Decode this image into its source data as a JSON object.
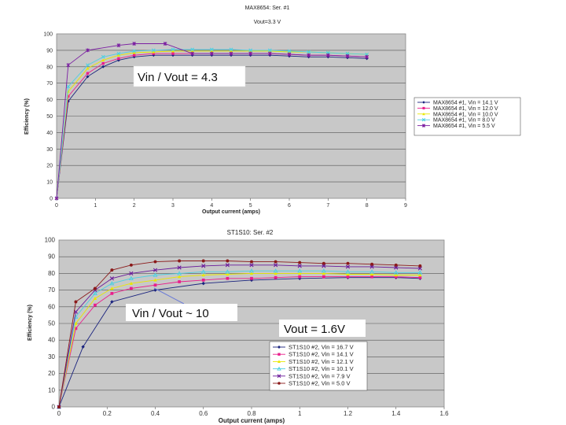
{
  "chart_data": [
    {
      "type": "line",
      "title": "MAX8654: Ser. #1",
      "subtitle": "Vout=3.3 V",
      "xlabel": "Output current (amps)",
      "ylabel": "Efficiency (%)",
      "xlim": [
        0,
        9
      ],
      "ylim": [
        0,
        100
      ],
      "xticks": [
        0,
        1,
        2,
        3,
        4,
        5,
        6,
        7,
        8,
        9
      ],
      "yticks": [
        0,
        10,
        20,
        30,
        40,
        50,
        60,
        70,
        80,
        90,
        100
      ],
      "grid": true,
      "legend_position": "right",
      "annotation": "Vin / Vout = 4.3",
      "series": [
        {
          "name": "MAX8654 #1, Vin = 14.1 V",
          "color": "#1a237e",
          "marker": "diamond",
          "x": [
            0,
            0.3,
            0.8,
            1.2,
            1.6,
            2.0,
            2.5,
            3.0,
            3.5,
            4.0,
            4.5,
            5.0,
            5.5,
            6.0,
            6.5,
            7.0,
            7.5,
            8.0
          ],
          "y": [
            0,
            59,
            74,
            80,
            84,
            86,
            87,
            87,
            87,
            87,
            87,
            87,
            87,
            86.5,
            86,
            86,
            85.5,
            85
          ]
        },
        {
          "name": "MAX8654 #1, Vin = 12.0 V",
          "color": "#e91e8c",
          "marker": "square",
          "x": [
            0,
            0.3,
            0.8,
            1.2,
            1.6,
            2.0,
            2.5,
            3.0,
            3.5,
            4.0,
            4.5,
            5.0,
            5.5,
            6.0,
            6.5,
            7.0,
            7.5,
            8.0
          ],
          "y": [
            0,
            62,
            76,
            82,
            85,
            87,
            88,
            88,
            88,
            88,
            88,
            88,
            88,
            87.5,
            87,
            87,
            86.5,
            86
          ]
        },
        {
          "name": "MAX8654 #1, Vin = 10.0 V",
          "color": "#e8e800",
          "marker": "triangle",
          "x": [
            0,
            0.3,
            0.8,
            1.2,
            1.6,
            2.0,
            2.5,
            3.0,
            3.5,
            4.0,
            4.5,
            5.0,
            5.5,
            6.0,
            6.5,
            7.0,
            7.5,
            8.0
          ],
          "y": [
            0,
            65,
            79,
            84,
            87,
            88.5,
            89,
            89.5,
            89.5,
            89.5,
            89.5,
            89.5,
            89.5,
            89,
            89,
            88.5,
            88,
            87.5
          ]
        },
        {
          "name": "MAX8654 #1, Vin = 8.0 V",
          "color": "#4dd0e1",
          "marker": "x",
          "x": [
            0,
            0.3,
            0.8,
            1.2,
            1.6,
            2.0,
            2.5,
            3.0,
            3.5,
            4.0,
            4.5,
            5.0,
            5.5,
            6.0,
            6.5,
            7.0,
            7.5,
            8.0
          ],
          "y": [
            0,
            68,
            81,
            86,
            88,
            89.5,
            90,
            90.5,
            90.5,
            90.5,
            90.5,
            90,
            90,
            89.5,
            89,
            88.5,
            88,
            87.5
          ]
        },
        {
          "name": "MAX8654 #1, Vin = 5.5 V",
          "color": "#7b1fa2",
          "marker": "star",
          "x": [
            0,
            0.3,
            0.8,
            1.6,
            2.0,
            2.8,
            3.5,
            4.0,
            4.5,
            5.0,
            5.5,
            6.0,
            6.5,
            7.0,
            7.5,
            8.0
          ],
          "y": [
            0,
            81,
            90,
            93,
            94,
            94,
            88,
            88,
            88,
            88,
            88,
            87.5,
            87,
            87,
            86.5,
            86
          ]
        }
      ]
    },
    {
      "type": "line",
      "title": "ST1S10: Ser. #2",
      "xlabel": "Output current (amps)",
      "ylabel": "Efficiency (%)",
      "xlim": [
        0,
        1.6
      ],
      "ylim": [
        0,
        100
      ],
      "xticks": [
        0,
        0.2,
        0.4,
        0.6,
        0.8,
        1,
        1.2,
        1.4,
        1.6
      ],
      "yticks": [
        0,
        10,
        20,
        30,
        40,
        50,
        60,
        70,
        80,
        90,
        100
      ],
      "grid": true,
      "legend_position": "bottom-right",
      "annotations": [
        "Vin / Vout ~ 10",
        "Vout = 1.6V"
      ],
      "series": [
        {
          "name": "ST1S10 #2, Vin = 16.7 V",
          "color": "#1a237e",
          "marker": "diamond",
          "x": [
            0,
            0.1,
            0.22,
            0.4,
            0.6,
            0.8,
            1.0,
            1.2,
            1.4,
            1.5
          ],
          "y": [
            0,
            36,
            63,
            70,
            74,
            76,
            77,
            77.5,
            77.5,
            77
          ]
        },
        {
          "name": "ST1S10 #2, Vin = 14.1 V",
          "color": "#e91e8c",
          "marker": "square",
          "x": [
            0,
            0.07,
            0.15,
            0.22,
            0.3,
            0.4,
            0.5,
            0.6,
            0.7,
            0.8,
            0.9,
            1.0,
            1.1,
            1.2,
            1.3,
            1.4,
            1.5
          ],
          "y": [
            0,
            47,
            61,
            68,
            71,
            73,
            75,
            76,
            77,
            77,
            77.5,
            78,
            78,
            78,
            78,
            78,
            77.5
          ]
        },
        {
          "name": "ST1S10 #2, Vin = 12.1 V",
          "color": "#e8e800",
          "marker": "triangle",
          "x": [
            0,
            0.07,
            0.15,
            0.22,
            0.3,
            0.4,
            0.5,
            0.6,
            0.7,
            0.8,
            0.9,
            1.0,
            1.1,
            1.2,
            1.3,
            1.4,
            1.5
          ],
          "y": [
            0,
            50,
            65,
            71,
            74,
            76,
            78,
            79,
            79.5,
            80,
            80,
            80,
            80,
            79.5,
            79.5,
            79,
            79
          ]
        },
        {
          "name": "ST1S10 #2, Vin = 10.1 V",
          "color": "#4dd0e1",
          "marker": "triangle-open",
          "x": [
            0,
            0.07,
            0.15,
            0.22,
            0.3,
            0.4,
            0.5,
            0.6,
            0.7,
            0.8,
            0.9,
            1.0,
            1.1,
            1.2,
            1.3,
            1.4,
            1.5
          ],
          "y": [
            0,
            54,
            68,
            74,
            77,
            79,
            80,
            81,
            81,
            81.5,
            81.5,
            81.5,
            81.5,
            81,
            81,
            80.5,
            80.5
          ]
        },
        {
          "name": "ST1S10 #2, Vin = 7.9 V",
          "color": "#6a1b9a",
          "marker": "x",
          "x": [
            0,
            0.07,
            0.15,
            0.22,
            0.3,
            0.4,
            0.5,
            0.6,
            0.7,
            0.8,
            0.9,
            1.0,
            1.1,
            1.2,
            1.3,
            1.4,
            1.5
          ],
          "y": [
            0,
            57,
            70,
            77,
            80,
            82,
            83.5,
            84.5,
            85,
            85,
            85,
            84.5,
            84.5,
            84,
            84,
            83.5,
            83
          ]
        },
        {
          "name": "ST1S10 #2, Vin = 5.0 V",
          "color": "#8b1a1a",
          "marker": "circle",
          "x": [
            0,
            0.07,
            0.15,
            0.22,
            0.3,
            0.4,
            0.5,
            0.6,
            0.7,
            0.8,
            0.9,
            1.0,
            1.1,
            1.2,
            1.3,
            1.4,
            1.5
          ],
          "y": [
            0,
            63,
            71,
            82,
            85,
            87,
            87.5,
            87.5,
            87.5,
            87,
            87,
            86.5,
            86,
            86,
            85.5,
            85,
            84.5
          ]
        }
      ]
    }
  ]
}
